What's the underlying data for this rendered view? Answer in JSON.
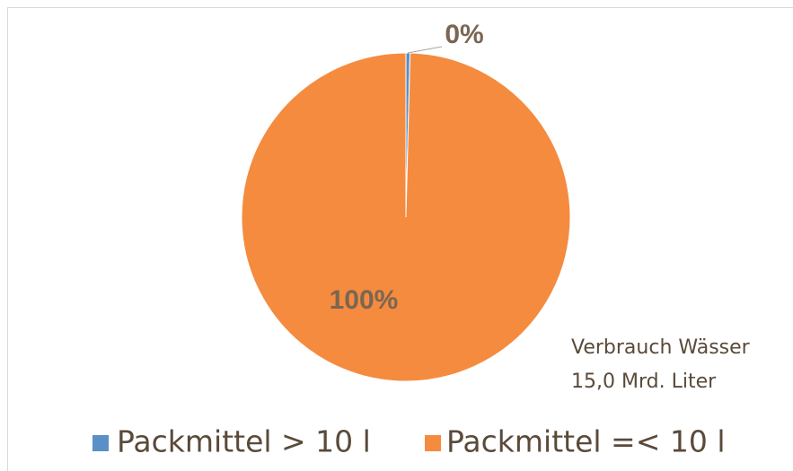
{
  "chart_data": {
    "type": "pie",
    "categories": [
      "Packmittel > 10 l",
      "Packmittel =< 10 l"
    ],
    "values": [
      0.4,
      99.6
    ],
    "value_labels": [
      "0%",
      "100%"
    ],
    "colors": [
      "#5b8fc7",
      "#f58b3f"
    ],
    "annotation": [
      "Verbrauch Wässer",
      "15,0 Mrd. Liter"
    ],
    "legend": "bottom"
  }
}
